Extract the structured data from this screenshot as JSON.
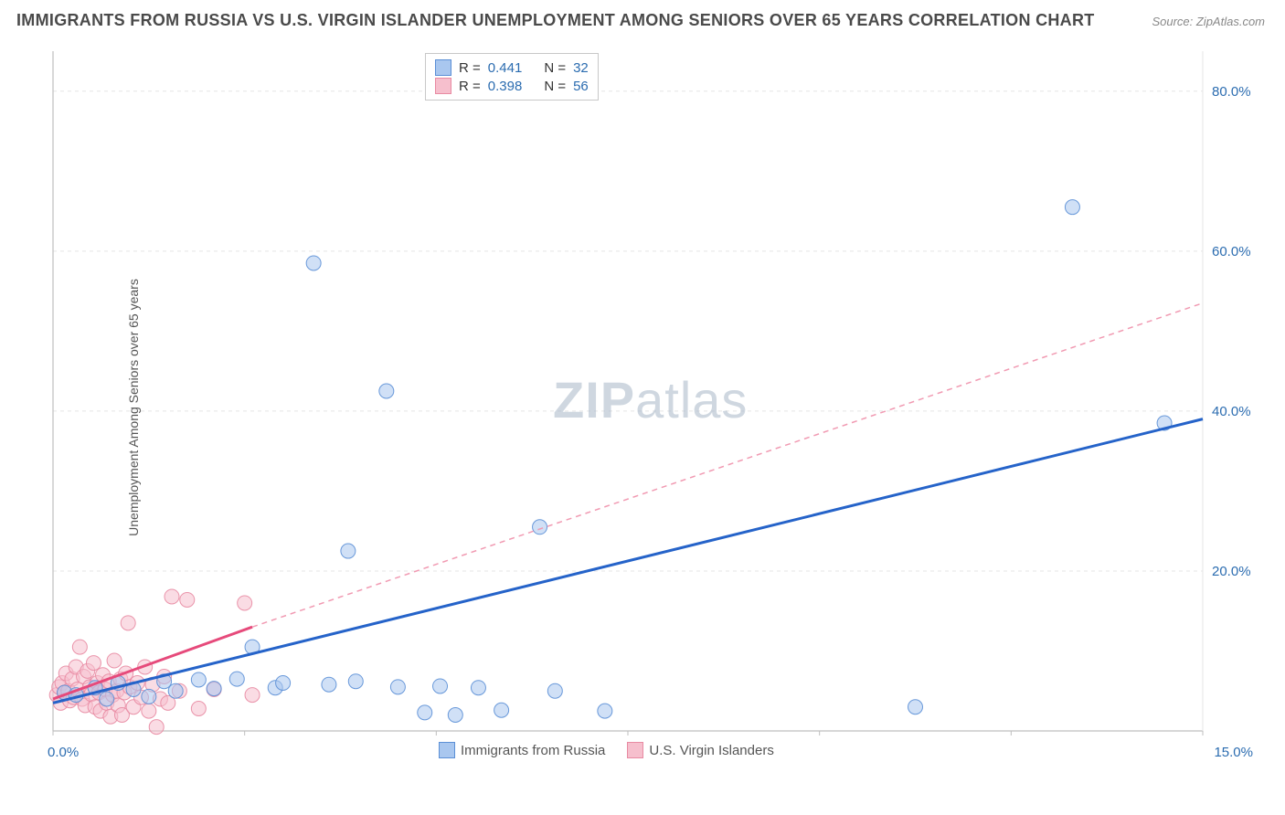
{
  "title": "IMMIGRANTS FROM RUSSIA VS U.S. VIRGIN ISLANDER UNEMPLOYMENT AMONG SENIORS OVER 65 YEARS CORRELATION CHART",
  "source": "Source: ZipAtlas.com",
  "watermark": {
    "bold": "ZIP",
    "light": "atlas"
  },
  "y_axis_label": "Unemployment Among Seniors over 65 years",
  "chart": {
    "type": "scatter",
    "background_color": "#ffffff",
    "grid_color": "#e5e5e5",
    "axis_color": "#bfbfbf",
    "xlim": [
      0,
      15
    ],
    "ylim": [
      0,
      85
    ],
    "x_ticks": [
      0,
      15
    ],
    "x_tick_labels": [
      "0.0%",
      "15.0%"
    ],
    "x_tick_color": "#2b6cb0",
    "y_ticks": [
      20,
      40,
      60,
      80
    ],
    "y_tick_labels": [
      "20.0%",
      "40.0%",
      "60.0%",
      "80.0%"
    ],
    "y_tick_color": "#2b6cb0",
    "marker_radius": 8,
    "marker_opacity": 0.55,
    "marker_stroke_opacity": 0.9
  },
  "legend_stats": {
    "rows": [
      {
        "swatch_fill": "#a9c7ef",
        "swatch_border": "#5b8fd6",
        "r_label": "R =",
        "r_val": "0.441",
        "n_label": "N =",
        "n_val": "32"
      },
      {
        "swatch_fill": "#f6bfcd",
        "swatch_border": "#e88aa2",
        "r_label": "R =",
        "r_val": "0.398",
        "n_label": "N =",
        "n_val": "56"
      }
    ]
  },
  "series_legend": {
    "items": [
      {
        "swatch_fill": "#a9c7ef",
        "swatch_border": "#5b8fd6",
        "label": "Immigrants from Russia"
      },
      {
        "swatch_fill": "#f6bfcd",
        "swatch_border": "#e88aa2",
        "label": "U.S. Virgin Islanders"
      }
    ]
  },
  "series": [
    {
      "name": "Immigrants from Russia",
      "color_fill": "#a9c7ef",
      "color_stroke": "#5b8fd6",
      "trend": {
        "x1": 0,
        "y1": 3.5,
        "x2": 15,
        "y2": 39,
        "color": "#2563c9",
        "width": 3,
        "dash": "none",
        "solid_until_x": 15
      },
      "points": [
        [
          0.15,
          4.8
        ],
        [
          0.3,
          4.5
        ],
        [
          0.55,
          5.4
        ],
        [
          0.7,
          4.0
        ],
        [
          0.85,
          6.0
        ],
        [
          1.05,
          5.2
        ],
        [
          1.25,
          4.3
        ],
        [
          1.45,
          6.2
        ],
        [
          1.6,
          5.0
        ],
        [
          1.9,
          6.4
        ],
        [
          2.1,
          5.3
        ],
        [
          2.4,
          6.5
        ],
        [
          2.6,
          10.5
        ],
        [
          2.9,
          5.4
        ],
        [
          3.0,
          6.0
        ],
        [
          3.4,
          58.5
        ],
        [
          3.6,
          5.8
        ],
        [
          3.85,
          22.5
        ],
        [
          3.95,
          6.2
        ],
        [
          4.35,
          42.5
        ],
        [
          4.5,
          5.5
        ],
        [
          4.85,
          2.3
        ],
        [
          5.05,
          5.6
        ],
        [
          5.25,
          2.0
        ],
        [
          5.55,
          5.4
        ],
        [
          5.85,
          2.6
        ],
        [
          6.35,
          25.5
        ],
        [
          6.55,
          5.0
        ],
        [
          7.2,
          2.5
        ],
        [
          11.25,
          3.0
        ],
        [
          13.3,
          65.5
        ],
        [
          14.5,
          38.5
        ]
      ]
    },
    {
      "name": "U.S. Virgin Islanders",
      "color_fill": "#f6bfcd",
      "color_stroke": "#e88aa2",
      "trend_solid": {
        "x1": 0,
        "y1": 4.0,
        "x2": 2.6,
        "y2": 13.0,
        "color": "#e64a7b",
        "width": 3
      },
      "trend_dash": {
        "x1": 2.6,
        "y1": 13.0,
        "x2": 15,
        "y2": 53.5,
        "color": "#f19ab2",
        "width": 1.5,
        "dash": "6,5"
      },
      "points": [
        [
          0.05,
          4.5
        ],
        [
          0.08,
          5.5
        ],
        [
          0.1,
          3.5
        ],
        [
          0.12,
          6.0
        ],
        [
          0.15,
          4.8
        ],
        [
          0.17,
          7.2
        ],
        [
          0.2,
          5.0
        ],
        [
          0.22,
          3.8
        ],
        [
          0.25,
          6.5
        ],
        [
          0.27,
          4.2
        ],
        [
          0.3,
          8.0
        ],
        [
          0.32,
          5.2
        ],
        [
          0.35,
          10.5
        ],
        [
          0.38,
          4.0
        ],
        [
          0.4,
          6.8
        ],
        [
          0.42,
          3.2
        ],
        [
          0.45,
          7.5
        ],
        [
          0.48,
          5.5
        ],
        [
          0.5,
          4.6
        ],
        [
          0.53,
          8.5
        ],
        [
          0.55,
          3.0
        ],
        [
          0.58,
          6.0
        ],
        [
          0.6,
          4.8
        ],
        [
          0.62,
          2.5
        ],
        [
          0.65,
          7.0
        ],
        [
          0.68,
          5.2
        ],
        [
          0.7,
          3.5
        ],
        [
          0.73,
          6.2
        ],
        [
          0.75,
          1.8
        ],
        [
          0.78,
          4.5
        ],
        [
          0.8,
          8.8
        ],
        [
          0.83,
          5.0
        ],
        [
          0.85,
          3.2
        ],
        [
          0.88,
          6.5
        ],
        [
          0.9,
          2.0
        ],
        [
          0.93,
          4.8
        ],
        [
          0.95,
          7.2
        ],
        [
          0.98,
          13.5
        ],
        [
          1.0,
          5.5
        ],
        [
          1.05,
          3.0
        ],
        [
          1.1,
          6.0
        ],
        [
          1.15,
          4.2
        ],
        [
          1.2,
          8.0
        ],
        [
          1.25,
          2.5
        ],
        [
          1.3,
          5.8
        ],
        [
          1.35,
          0.5
        ],
        [
          1.4,
          4.0
        ],
        [
          1.45,
          6.8
        ],
        [
          1.5,
          3.5
        ],
        [
          1.55,
          16.8
        ],
        [
          1.65,
          5.0
        ],
        [
          1.75,
          16.4
        ],
        [
          1.9,
          2.8
        ],
        [
          2.1,
          5.2
        ],
        [
          2.5,
          16.0
        ],
        [
          2.6,
          4.5
        ]
      ]
    }
  ]
}
